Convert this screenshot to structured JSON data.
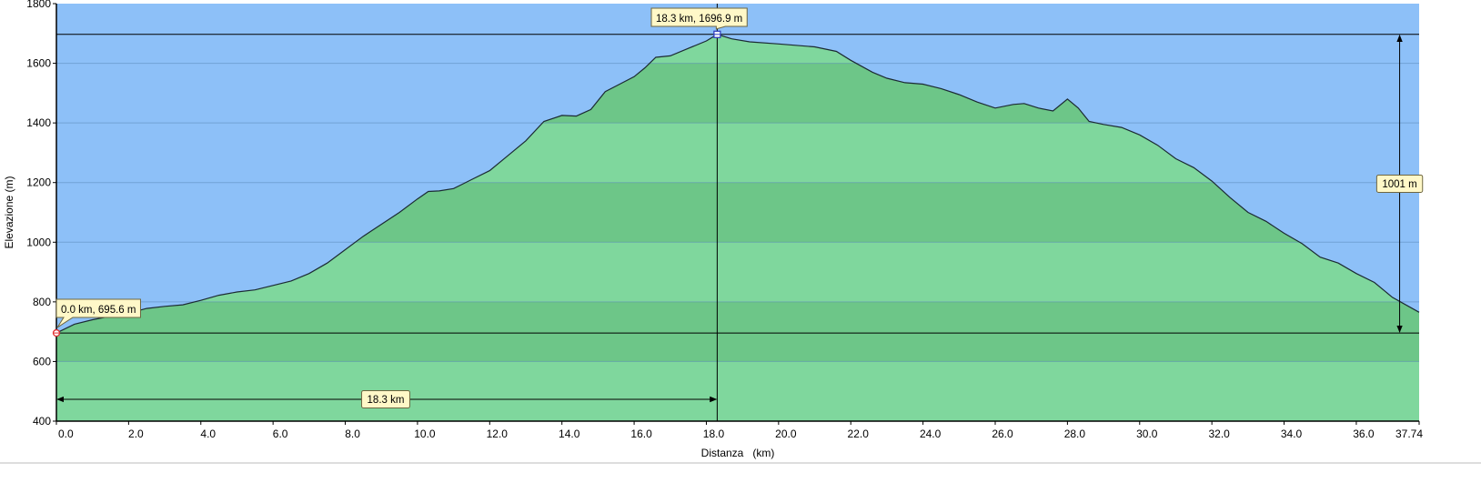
{
  "chart_data": {
    "type": "area",
    "xlabel": "Distanza   (km)",
    "ylabel": "Elevazione (m)",
    "xlim": [
      0,
      37.74
    ],
    "ylim": [
      400,
      1800
    ],
    "x_ticks": [
      {
        "v": 0,
        "label": "0.0"
      },
      {
        "v": 2,
        "label": "2.0"
      },
      {
        "v": 4,
        "label": "4.0"
      },
      {
        "v": 6,
        "label": "6.0"
      },
      {
        "v": 8,
        "label": "8.0"
      },
      {
        "v": 10,
        "label": "10.0"
      },
      {
        "v": 12,
        "label": "12.0"
      },
      {
        "v": 14,
        "label": "14.0"
      },
      {
        "v": 16,
        "label": "16.0"
      },
      {
        "v": 18,
        "label": "18.0"
      },
      {
        "v": 20,
        "label": "20.0"
      },
      {
        "v": 22,
        "label": "22.0"
      },
      {
        "v": 24,
        "label": "24.0"
      },
      {
        "v": 26,
        "label": "26.0"
      },
      {
        "v": 28,
        "label": "28.0"
      },
      {
        "v": 30,
        "label": "30.0"
      },
      {
        "v": 32,
        "label": "32.0"
      },
      {
        "v": 34,
        "label": "34.0"
      },
      {
        "v": 36,
        "label": "36.0"
      },
      {
        "v": 37.74,
        "label": "37.74"
      }
    ],
    "y_ticks": [
      {
        "v": 400,
        "label": "400"
      },
      {
        "v": 600,
        "label": "600"
      },
      {
        "v": 800,
        "label": "800"
      },
      {
        "v": 1000,
        "label": "1000"
      },
      {
        "v": 1200,
        "label": "1200"
      },
      {
        "v": 1400,
        "label": "1400"
      },
      {
        "v": 1600,
        "label": "1600"
      },
      {
        "v": 1800,
        "label": "1800"
      }
    ],
    "grid": true,
    "series": [
      {
        "x": [
          0,
          0.5,
          1,
          1.5,
          2,
          2.5,
          3,
          3.5,
          4,
          4.5,
          5,
          5.5,
          6,
          6.5,
          7,
          7.5,
          8,
          8.5,
          9,
          9.5,
          10,
          10.3,
          10.6,
          11,
          11.5,
          12,
          12.5,
          13,
          13.5,
          14,
          14.4,
          14.8,
          15.2,
          15.6,
          16,
          16.3,
          16.6,
          17,
          17.5,
          18,
          18.3,
          18.7,
          19.2,
          20,
          21,
          21.6,
          22,
          22.6,
          23,
          23.5,
          24,
          24.5,
          25,
          25.5,
          26,
          26.5,
          26.8,
          27.2,
          27.6,
          28,
          28.3,
          28.6,
          29,
          29.5,
          30,
          30.5,
          31,
          31.5,
          32,
          32.5,
          33,
          33.5,
          34,
          34.5,
          35,
          35.5,
          36,
          36.5,
          37,
          37.74
        ],
        "values": [
          695.6,
          725,
          740,
          752,
          762,
          778,
          785,
          790,
          805,
          822,
          833,
          840,
          855,
          870,
          895,
          930,
          975,
          1020,
          1060,
          1100,
          1145,
          1170,
          1172,
          1180,
          1210,
          1240,
          1290,
          1340,
          1405,
          1425,
          1423,
          1445,
          1505,
          1530,
          1555,
          1585,
          1620,
          1625,
          1650,
          1675,
          1696.9,
          1682,
          1672,
          1665,
          1655,
          1640,
          1610,
          1570,
          1550,
          1535,
          1530,
          1515,
          1495,
          1470,
          1450,
          1462,
          1465,
          1450,
          1440,
          1480,
          1450,
          1405,
          1395,
          1385,
          1360,
          1325,
          1280,
          1250,
          1205,
          1150,
          1100,
          1070,
          1030,
          995,
          950,
          930,
          895,
          865,
          815,
          765
        ]
      }
    ],
    "annotations": {
      "start_label": "0.0 km, 695.6 m",
      "max_label": "18.3 km, 1696.9 m",
      "distance_label": "18.3 km",
      "elevation_gain_label": "1001 m"
    },
    "markers": {
      "start": {
        "x": 0,
        "y": 695.6
      },
      "max": {
        "x": 18.3,
        "y": 1696.9
      },
      "gain_arrow_x": 37.2
    },
    "colors": {
      "sky": "#8dc0f8",
      "fill_light": "#7fd79d",
      "fill_dark": "#6dc688",
      "line": "#1b2a33",
      "callout_bg": "#fff8c8"
    }
  }
}
